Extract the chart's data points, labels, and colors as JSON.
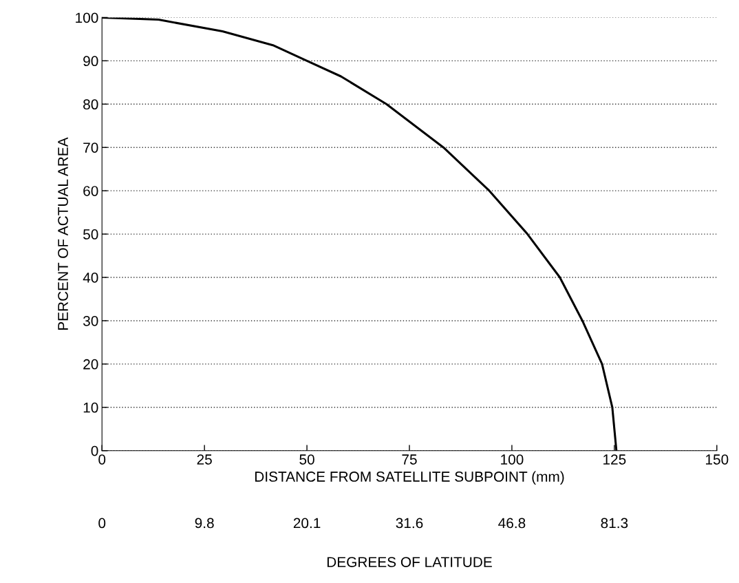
{
  "chart_data": {
    "type": "line",
    "xlabel": "DISTANCE FROM SATELLITE SUBPOINT (mm)",
    "ylabel": "PERCENT OF ACTUAL AREA",
    "annotations": [
      "0",
      "9.8",
      "20.1",
      "31.6",
      "46.8",
      "81.3",
      "DEGREES OF LATITUDE"
    ],
    "series": [
      {
        "color": "#000000",
        "x": [
          0,
          13.8,
          29.4,
          41.7,
          50,
          58.3,
          69.4,
          83.3,
          94.5,
          103.8,
          111.7,
          117.2,
          122,
          124.5,
          125.5
        ],
        "values": [
          100,
          99.5,
          96.8,
          93.6,
          90,
          86.4,
          80,
          70,
          60,
          50,
          40,
          30,
          20,
          10,
          0
        ]
      }
    ],
    "xlim": [
      0,
      150
    ],
    "xticks": [
      0,
      25,
      50,
      75,
      100,
      125,
      150
    ],
    "ylim": [
      0,
      100
    ],
    "yticks": [
      0,
      10,
      20,
      30,
      40,
      50,
      60,
      70,
      80,
      90,
      100
    ],
    "grid": "y",
    "line_style": "solid",
    "marker": "none",
    "legend": false
  }
}
